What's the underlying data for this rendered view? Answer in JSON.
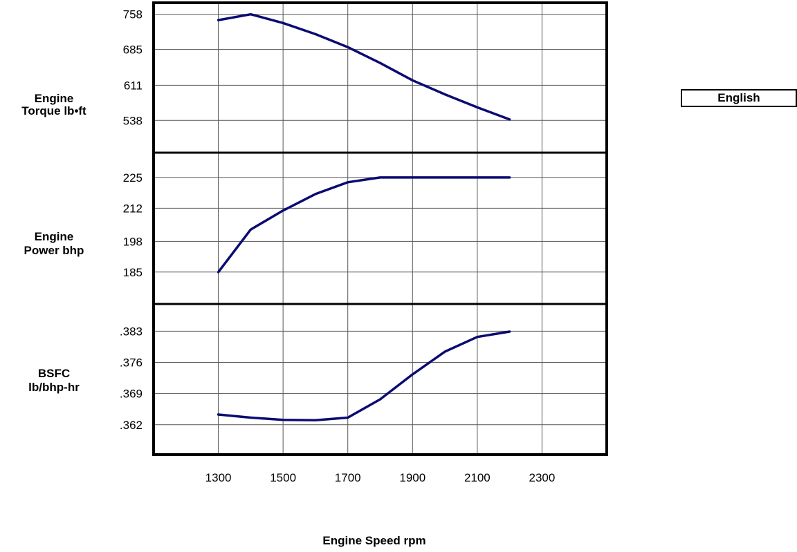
{
  "unit_system_label": "English",
  "chart_data": {
    "type": "line",
    "xlabel": "Engine Speed rpm",
    "x_ticks": [
      1300,
      1500,
      1700,
      1900,
      2100,
      2300
    ],
    "xlim": [
      1100,
      2500
    ],
    "line_color": "#0b0b72",
    "grid": true,
    "panels": [
      {
        "ylabel_lines": [
          "Engine",
          "Torque lb•ft"
        ],
        "y_ticks": [
          {
            "value": 538,
            "label": "538"
          },
          {
            "value": 611,
            "label": "611"
          },
          {
            "value": 685,
            "label": "685"
          },
          {
            "value": 758,
            "label": "758"
          }
        ],
        "ylim": [
          471,
          782
        ],
        "series": [
          {
            "x": [
              1300,
              1400,
              1500,
              1600,
              1700,
              1800,
              1900,
              2000,
              2100,
              2200
            ],
            "values": [
              746,
              758,
              740,
              717,
              690,
              657,
              621,
              592,
              565,
              540
            ]
          }
        ]
      },
      {
        "ylabel_lines": [
          "Engine",
          "Power bhp"
        ],
        "y_ticks": [
          {
            "value": 185,
            "label": "185"
          },
          {
            "value": 198,
            "label": "198"
          },
          {
            "value": 212,
            "label": "212"
          },
          {
            "value": 225,
            "label": "225"
          }
        ],
        "ylim": [
          171.5,
          235.5
        ],
        "series": [
          {
            "x": [
              1300,
              1400,
              1500,
              1600,
              1700,
              1800,
              1900,
              2000,
              2100,
              2200
            ],
            "values": [
              185,
              203,
              211,
              218,
              223,
              225,
              225,
              225,
              225,
              225
            ]
          }
        ]
      },
      {
        "ylabel_lines": [
          "BSFC",
          "lb/bhp-hr"
        ],
        "y_ticks": [
          {
            "value": 0.362,
            "label": ".362"
          },
          {
            "value": 0.369,
            "label": ".369"
          },
          {
            "value": 0.376,
            "label": ".376"
          },
          {
            "value": 0.383,
            "label": ".383"
          }
        ],
        "ylim": [
          0.3553,
          0.3891
        ],
        "series": [
          {
            "x": [
              1300,
              1400,
              1500,
              1600,
              1700,
              1800,
              1900,
              2000,
              2100,
              2200
            ],
            "values": [
              0.3643,
              0.3636,
              0.3631,
              0.363,
              0.3636,
              0.3677,
              0.3733,
              0.3784,
              0.3817,
              0.3829
            ]
          }
        ]
      }
    ]
  }
}
